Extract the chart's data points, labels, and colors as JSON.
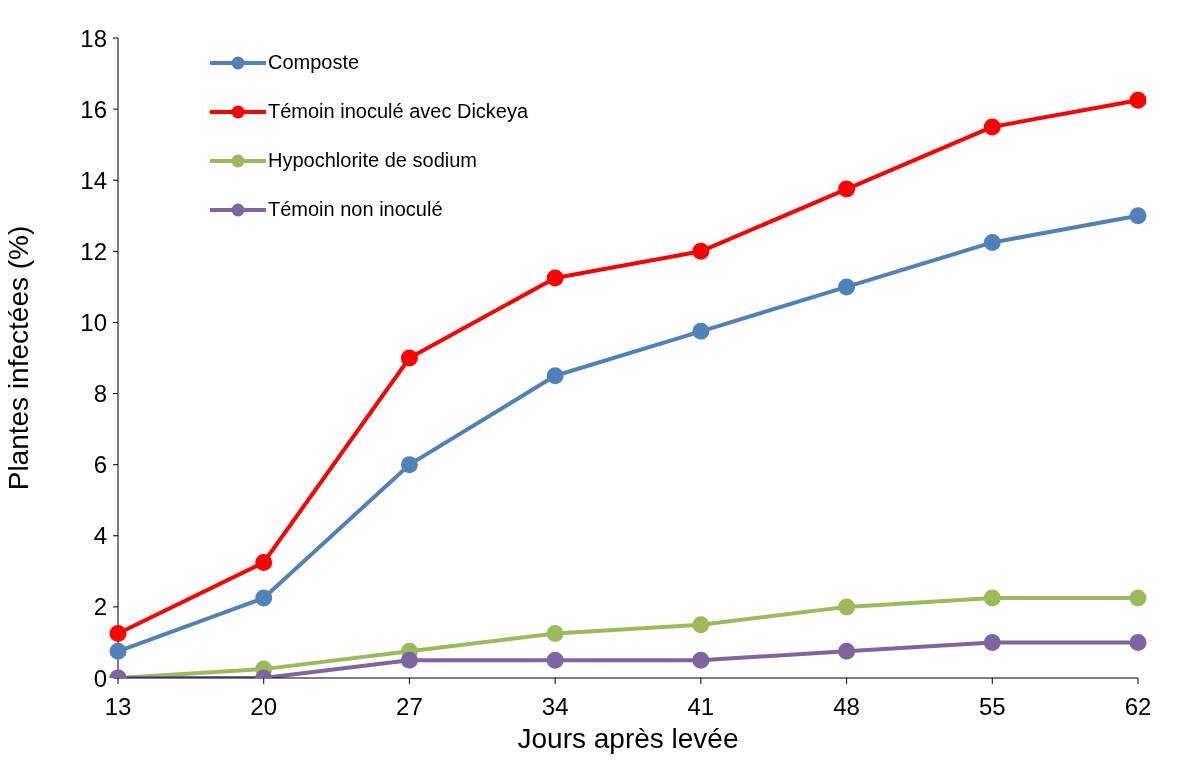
{
  "chart_data": {
    "type": "line",
    "xlabel": "Jours après levée",
    "ylabel": "Plantes infectées (%)",
    "categories": [
      "13",
      "20",
      "27",
      "34",
      "41",
      "48",
      "55",
      "62"
    ],
    "series": [
      {
        "name": "Composte",
        "color": "#4f81bd",
        "values": [
          0.75,
          2.25,
          6.0,
          8.5,
          9.75,
          11.0,
          12.25,
          13.0
        ]
      },
      {
        "name": "Témoin inoculé avec Dickeya",
        "color": "#ff0000",
        "values": [
          1.25,
          3.25,
          9.0,
          11.25,
          12.0,
          13.75,
          15.5,
          16.25
        ]
      },
      {
        "name": "Hypochlorite de sodium",
        "color": "#9bbb59",
        "values": [
          0,
          0.25,
          0.75,
          1.25,
          1.5,
          2.0,
          2.25,
          2.25
        ]
      },
      {
        "name": "Témoin non inoculé",
        "color": "#8064a2",
        "values": [
          0,
          0,
          0.5,
          0.5,
          0.5,
          0.75,
          1.0,
          1.0
        ]
      }
    ],
    "ylim": [
      0,
      18
    ],
    "yticks": [
      0,
      2,
      4,
      6,
      8,
      10,
      12,
      14,
      16,
      18
    ],
    "grid": false,
    "legend": "top left",
    "marker": "circle",
    "line_style": "solid"
  }
}
